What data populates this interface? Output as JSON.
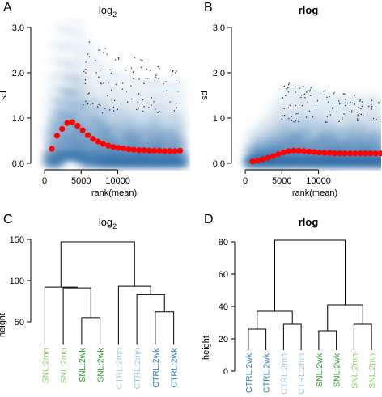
{
  "chart_data": [
    {
      "panel": "A",
      "type": "scatter",
      "title": "log",
      "title_sub": "2",
      "xlabel": "rank(mean)",
      "ylabel": "sd",
      "xlim": [
        -1000,
        20000
      ],
      "ylim": [
        0,
        3.0
      ],
      "xticks": [
        {
          "value": 0,
          "label": "0"
        },
        {
          "value": 5000,
          "label": "5000"
        },
        {
          "value": 10000,
          "label": "10000"
        }
      ],
      "yticks": [
        {
          "value": 0,
          "label": "0.0"
        },
        {
          "value": 1,
          "label": "1.0"
        },
        {
          "value": 2,
          "label": "2.0"
        },
        {
          "value": 3,
          "label": "3.0"
        }
      ],
      "grid": false,
      "density_color": "#2f6ea8",
      "series": [
        {
          "x": [
            1000,
            1700,
            2400,
            3100,
            3800,
            4500,
            5200,
            5900,
            6600,
            7300,
            8000,
            8700,
            9400,
            10100,
            10800,
            11500,
            12200,
            12900,
            13600,
            14300,
            15000,
            15700,
            16400,
            17100,
            17800,
            18500
          ],
          "values": [
            0.32,
            0.61,
            0.76,
            0.89,
            0.91,
            0.83,
            0.73,
            0.62,
            0.54,
            0.48,
            0.43,
            0.39,
            0.36,
            0.34,
            0.33,
            0.31,
            0.3,
            0.29,
            0.29,
            0.28,
            0.28,
            0.28,
            0.27,
            0.27,
            0.27,
            0.28
          ],
          "color": "#ff0000"
        }
      ]
    },
    {
      "panel": "B",
      "type": "scatter",
      "title": "rlog",
      "xlabel": "rank(mean)",
      "ylabel": "sd",
      "xlim": [
        -1000,
        20000
      ],
      "ylim": [
        0,
        3.0
      ],
      "xticks": [
        {
          "value": 0,
          "label": "0"
        },
        {
          "value": 5000,
          "label": "5000"
        },
        {
          "value": 10000,
          "label": "10000"
        }
      ],
      "yticks": [
        {
          "value": 0,
          "label": "0.0"
        },
        {
          "value": 1,
          "label": "1.0"
        },
        {
          "value": 2,
          "label": "2.0"
        },
        {
          "value": 3,
          "label": "3.0"
        }
      ],
      "grid": false,
      "density_color": "#2f6ea8",
      "series": [
        {
          "x": [
            1000,
            1700,
            2400,
            3100,
            3800,
            4500,
            5200,
            5900,
            6600,
            7300,
            8000,
            8700,
            9400,
            10100,
            10800,
            11500,
            12200,
            12900,
            13600,
            14300,
            15000,
            15700,
            16400,
            17100,
            17800,
            18500
          ],
          "values": [
            0.04,
            0.06,
            0.09,
            0.12,
            0.16,
            0.2,
            0.24,
            0.27,
            0.28,
            0.28,
            0.27,
            0.26,
            0.25,
            0.24,
            0.23,
            0.23,
            0.22,
            0.22,
            0.22,
            0.22,
            0.22,
            0.22,
            0.22,
            0.22,
            0.22,
            0.22
          ],
          "color": "#ff0000"
        }
      ]
    },
    {
      "panel": "C",
      "type": "dendrogram",
      "title": "log",
      "title_sub": "2",
      "ylabel": "height",
      "ylim": [
        0,
        150
      ],
      "yticks": [
        {
          "value": 50,
          "label": "50"
        },
        {
          "value": 100,
          "label": "100"
        },
        {
          "value": 150,
          "label": "150"
        }
      ],
      "leaves": [
        {
          "label": "SNL:2mn",
          "color": "#8fcf6f"
        },
        {
          "label": "SNL:2mn",
          "color": "#8fcf6f"
        },
        {
          "label": "SNL:2wk",
          "color": "#2e9a2e"
        },
        {
          "label": "SNL:2wk",
          "color": "#2e9a2e"
        },
        {
          "label": "CTRL:2mn",
          "color": "#9fc9e6"
        },
        {
          "label": "CTRL:2mn",
          "color": "#9fc9e6"
        },
        {
          "label": "CTRL:2wk",
          "color": "#2f7fbf"
        },
        {
          "label": "CTRL:2wk",
          "color": "#2f7fbf"
        }
      ],
      "merges": [
        {
          "left": 2,
          "right": 3,
          "height": 55
        },
        {
          "left": 6,
          "right": 7,
          "height": 62
        },
        {
          "left": 5,
          "right": -2,
          "height": 83
        },
        {
          "left": 1,
          "right": -1,
          "height": 91
        },
        {
          "left": 4,
          "right": -3,
          "height": 93
        },
        {
          "left": 0,
          "right": -4,
          "height": 92
        },
        {
          "left": -6,
          "right": -5,
          "height": 147
        }
      ]
    },
    {
      "panel": "D",
      "type": "dendrogram",
      "title": "rlog",
      "ylabel": "height",
      "ylim": [
        0,
        80
      ],
      "yticks": [
        {
          "value": 0,
          "label": "0"
        },
        {
          "value": 20,
          "label": "20"
        },
        {
          "value": 40,
          "label": "40"
        },
        {
          "value": 60,
          "label": "60"
        },
        {
          "value": 80,
          "label": "80"
        }
      ],
      "leaves": [
        {
          "label": "CTRL:2wk",
          "color": "#2f7fbf"
        },
        {
          "label": "CTRL:2wk",
          "color": "#2f7fbf"
        },
        {
          "label": "CTRL:2mn",
          "color": "#9fc9e6"
        },
        {
          "label": "CTRL:2mn",
          "color": "#9fc9e6"
        },
        {
          "label": "SNL:2wk",
          "color": "#2e9a2e"
        },
        {
          "label": "SNL:2wk",
          "color": "#2e9a2e"
        },
        {
          "label": "SNL:2mn",
          "color": "#8fcf6f"
        },
        {
          "label": "SNL:2mn",
          "color": "#8fcf6f"
        }
      ],
      "merges": [
        {
          "left": 0,
          "right": 1,
          "height": 26
        },
        {
          "left": 2,
          "right": 3,
          "height": 29
        },
        {
          "left": -1,
          "right": -2,
          "height": 37
        },
        {
          "left": 4,
          "right": 5,
          "height": 25
        },
        {
          "left": 6,
          "right": 7,
          "height": 29
        },
        {
          "left": -4,
          "right": -5,
          "height": 41
        },
        {
          "left": -3,
          "right": -6,
          "height": 81
        }
      ]
    }
  ],
  "panels": {
    "a": {
      "letter": "A",
      "title": "log",
      "title_sub": "2"
    },
    "b": {
      "letter": "B",
      "title": "rlog"
    },
    "c": {
      "letter": "C",
      "title": "log",
      "title_sub": "2"
    },
    "d": {
      "letter": "D",
      "title": "rlog"
    }
  }
}
